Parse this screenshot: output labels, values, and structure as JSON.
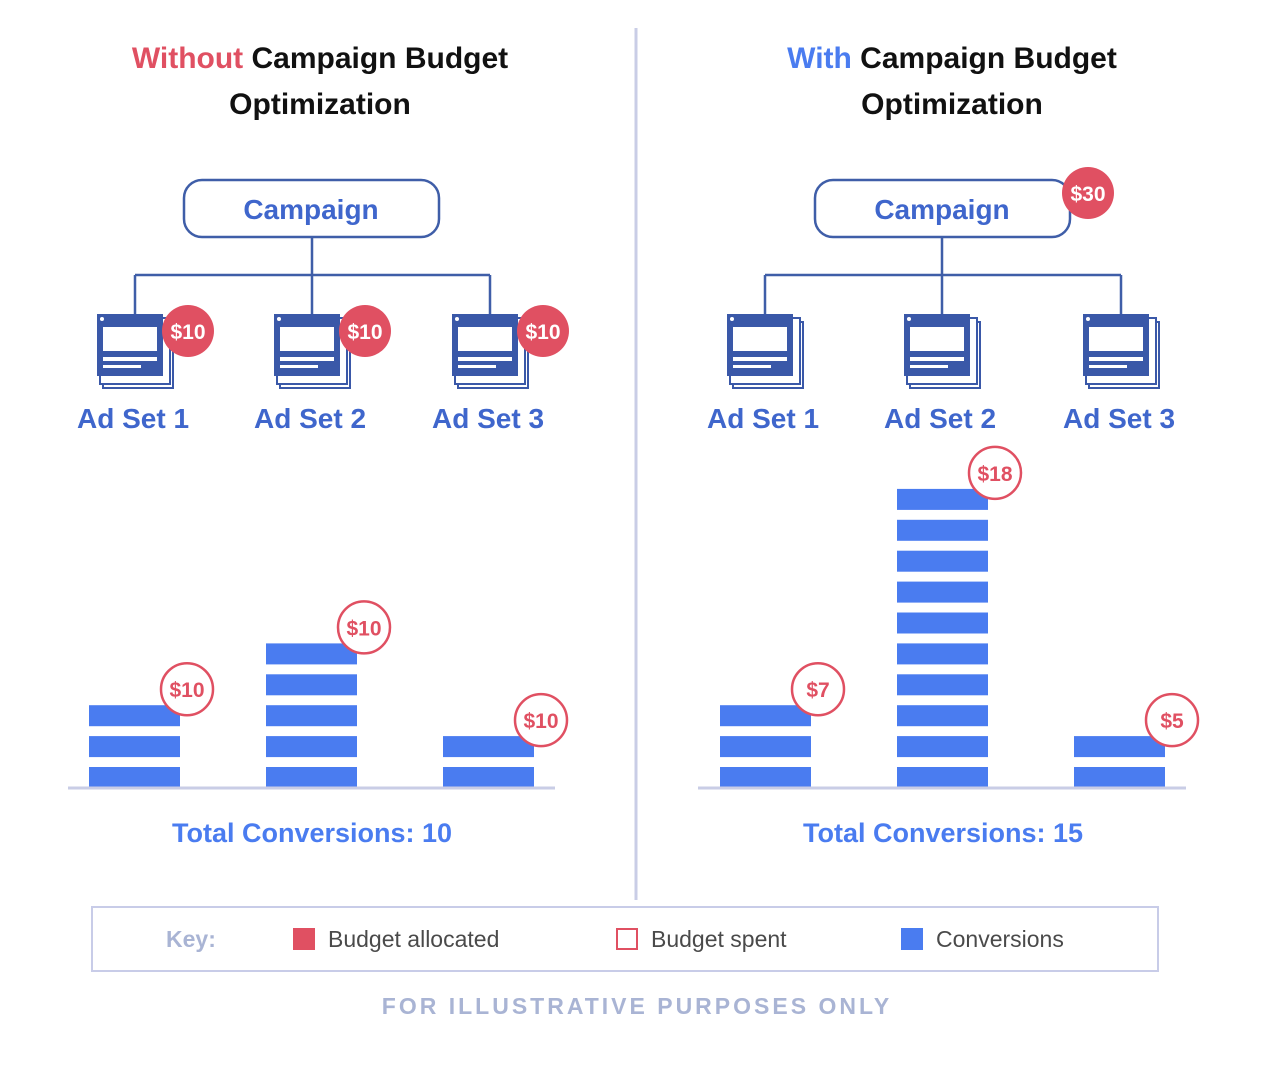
{
  "colors": {
    "red": "#e05062",
    "blue": "#4a7cf0",
    "navy": "#3a58a8",
    "adset_text": "#3f66cc",
    "line": "#3f5ea8",
    "divider": "#c9cde6"
  },
  "left": {
    "title_highlight": "Without",
    "title_rest_line1": " Campaign Budget",
    "title_line2": "Optimization",
    "campaign_label": "Campaign",
    "adsets": [
      {
        "label": "Ad Set 1",
        "budget": "$10"
      },
      {
        "label": "Ad Set 2",
        "budget": "$10"
      },
      {
        "label": "Ad Set 3",
        "budget": "$10"
      }
    ],
    "bars": [
      {
        "conversions": 3,
        "spent": "$10"
      },
      {
        "conversions": 5,
        "spent": "$10"
      },
      {
        "conversions": 2,
        "spent": "$10"
      }
    ],
    "total_label": "Total Conversions: 10"
  },
  "right": {
    "title_highlight": "With",
    "title_rest_line1": " Campaign Budget",
    "title_line2": "Optimization",
    "campaign_label": "Campaign",
    "campaign_budget": "$30",
    "adsets": [
      {
        "label": "Ad Set 1"
      },
      {
        "label": "Ad Set 2"
      },
      {
        "label": "Ad Set 3"
      }
    ],
    "bars": [
      {
        "conversions": 3,
        "spent": "$7"
      },
      {
        "conversions": 10,
        "spent": "$18"
      },
      {
        "conversions": 2,
        "spent": "$5"
      }
    ],
    "total_label": "Total Conversions: 15"
  },
  "key": {
    "label": "Key:",
    "items": [
      "Budget allocated",
      "Budget spent",
      "Conversions"
    ]
  },
  "footer": "FOR ILLUSTRATIVE PURPOSES ONLY"
}
